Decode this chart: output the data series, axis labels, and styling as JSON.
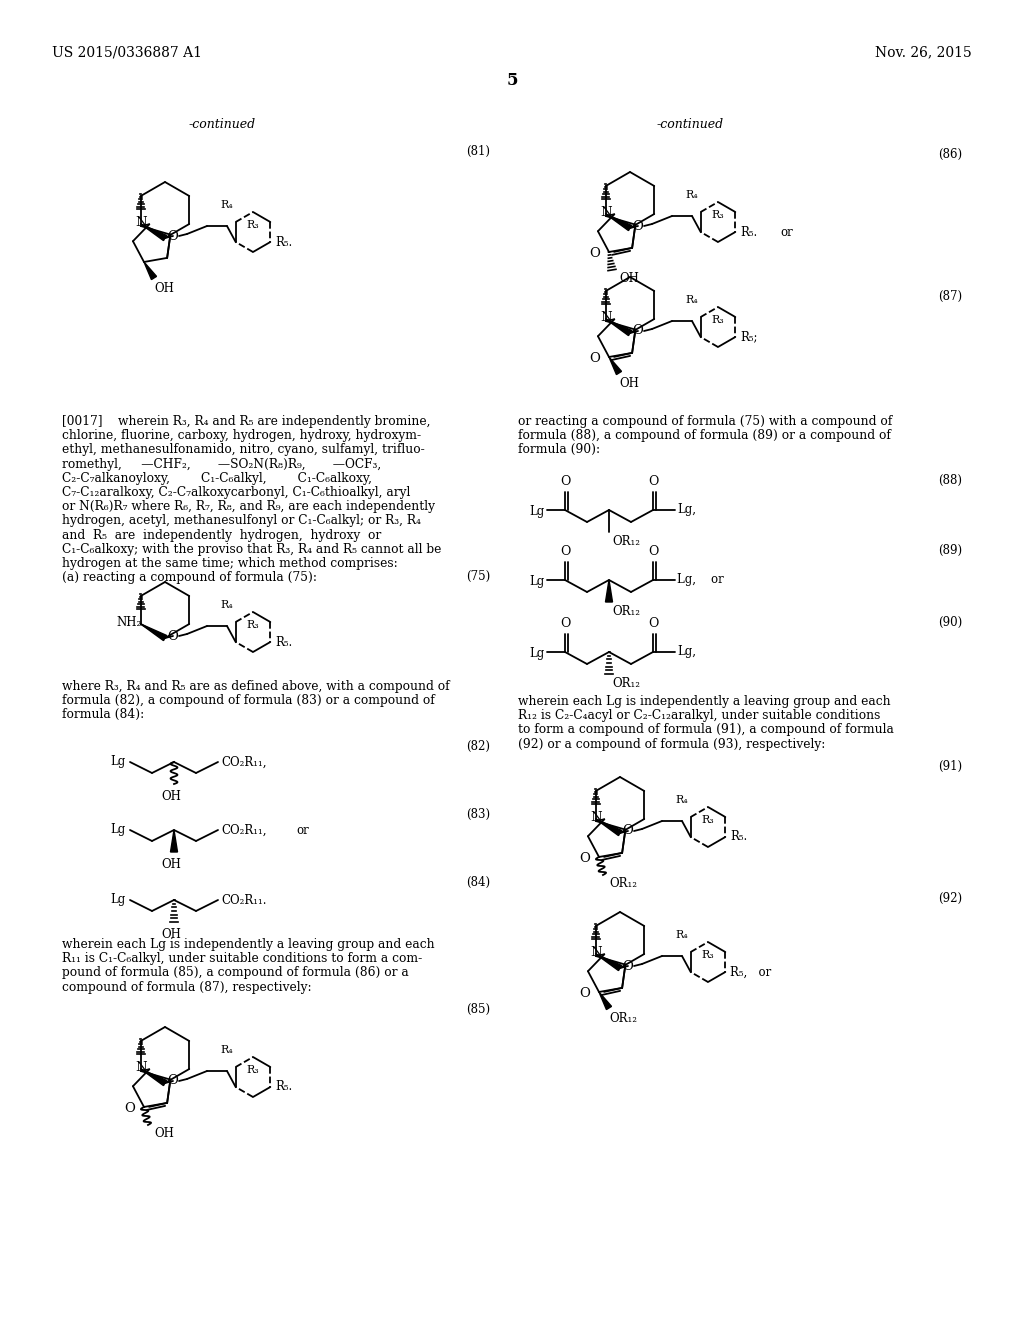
{
  "bg_color": "#ffffff",
  "header_left": "US 2015/0336887 A1",
  "header_right": "Nov. 26, 2015",
  "page_number": "5"
}
